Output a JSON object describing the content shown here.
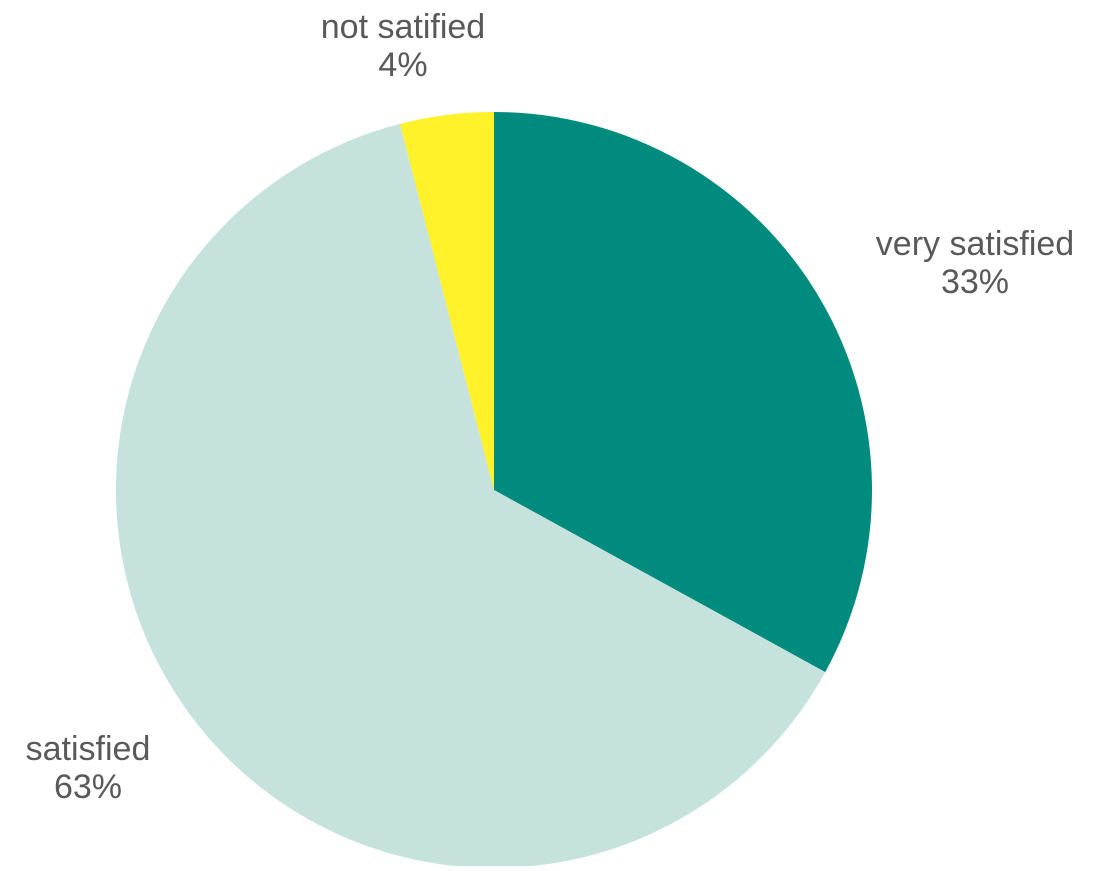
{
  "chart_data": {
    "type": "pie",
    "title": "",
    "start_angle_deg": 0,
    "direction": "clockwise",
    "legend": "none",
    "data_labels": "outside, category name and percentage",
    "slices": [
      {
        "name": "very satisfied",
        "value": 33,
        "label": "33%",
        "color": "#008B7E"
      },
      {
        "name": "satisfied",
        "value": 63,
        "label": "63%",
        "color": "#C5E3DC"
      },
      {
        "name": "not satified",
        "value": 4,
        "label": "4%",
        "color": "#FFF12A"
      }
    ],
    "label_color": "#595959"
  }
}
